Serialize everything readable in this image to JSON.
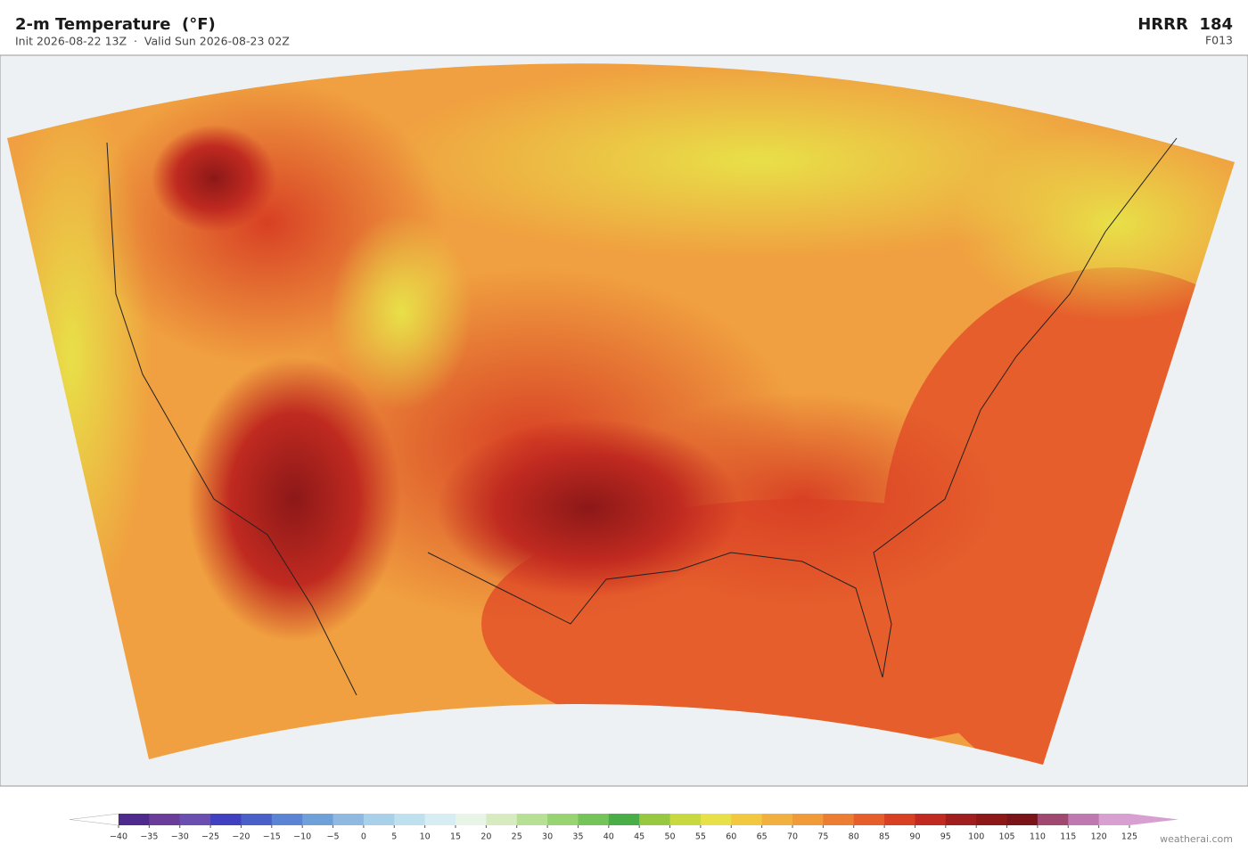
{
  "header": {
    "title": "2-m Temperature  (°F)",
    "subtitle": "Init 2026-08-22 13Z  ·  Valid Sun 2026-08-23 02Z",
    "model": "HRRR  184",
    "forecast_hour": "F013"
  },
  "colorbar": {
    "ticks": [
      {
        "value": -40,
        "label": "−40"
      },
      {
        "value": -35,
        "label": "−35"
      },
      {
        "value": -30,
        "label": "−30"
      },
      {
        "value": -25,
        "label": "−25"
      },
      {
        "value": -20,
        "label": "−20"
      },
      {
        "value": -15,
        "label": "−15"
      },
      {
        "value": -10,
        "label": "−10"
      },
      {
        "value": -5,
        "label": "−5"
      },
      0,
      5,
      10,
      15,
      20,
      25,
      30,
      35,
      40,
      45,
      50,
      55,
      60,
      65,
      70,
      75,
      80,
      85,
      90,
      95,
      100,
      105,
      110,
      115,
      120,
      125
    ],
    "colors": [
      "#4e2a8c",
      "#6a3d9a",
      "#6b4fb0",
      "#4040c0",
      "#4a5fc8",
      "#5b84d4",
      "#6fa0da",
      "#8fb9e0",
      "#a8d0e8",
      "#bfe0ee",
      "#d6eef3",
      "#e6f5e6",
      "#d6ecc0",
      "#b8e094",
      "#98d472",
      "#74c45a",
      "#4aae48",
      "#98c840",
      "#c8d840",
      "#e8e048",
      "#f2c840",
      "#f2b040",
      "#f09a3a",
      "#ec7e34",
      "#e65e2c",
      "#d84024",
      "#c02a20",
      "#a01e1e",
      "#8c1818",
      "#7a1418",
      "#a04870",
      "#c078b0",
      "#d8a0d0"
    ],
    "under_color": "#ffffff",
    "over_color": "#d8a0d0"
  },
  "footer": {
    "credit": "weatherai.com"
  }
}
